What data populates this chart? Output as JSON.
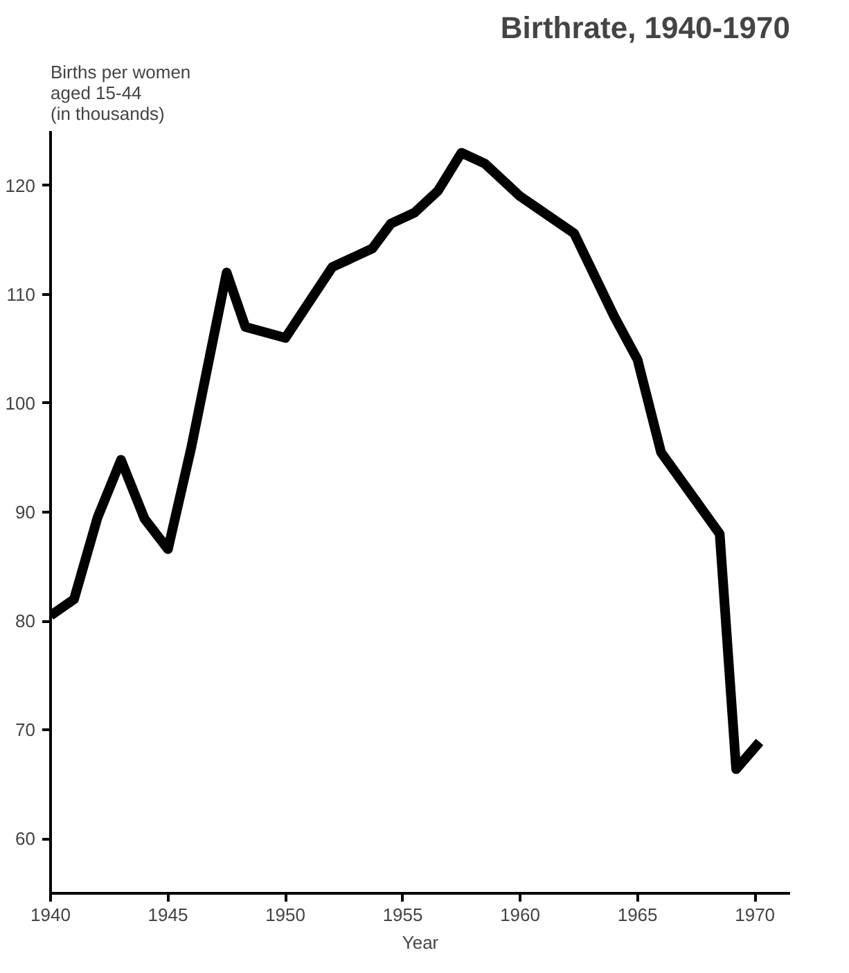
{
  "chart_data": {
    "type": "line",
    "title": "Birthrate, 1940-1970",
    "xlabel": "Year",
    "ylabel": "Births per women\naged 15-44\n(in thousands)",
    "x": [
      1940,
      1941,
      1942,
      1943,
      1944,
      1945,
      1946,
      1947.5,
      1948.3,
      1950,
      1952,
      1953.7,
      1954.5,
      1955.5,
      1956.5,
      1957.5,
      1958.5,
      1960,
      1962.3,
      1964,
      1965,
      1966,
      1968.5,
      1969.2,
      1970.2
    ],
    "series": [
      {
        "color": "#000000",
        "values": [
          80.5,
          82,
          89.5,
          94.8,
          89.4,
          86.6,
          96,
          112,
          107,
          106,
          112.5,
          114.2,
          116.5,
          117.5,
          119.5,
          123,
          122,
          119,
          115.6,
          108,
          104,
          95.5,
          88,
          66.4,
          68.9
        ]
      }
    ],
    "xlim": [
      1940,
      1971.5
    ],
    "xticks": [
      1940,
      1945,
      1950,
      1955,
      1960,
      1965,
      1970
    ],
    "ylim": [
      55,
      125
    ],
    "yticks": [
      60,
      70,
      80,
      90,
      100,
      110,
      120
    ],
    "grid": false,
    "marker": "none",
    "line_style": "solid"
  }
}
